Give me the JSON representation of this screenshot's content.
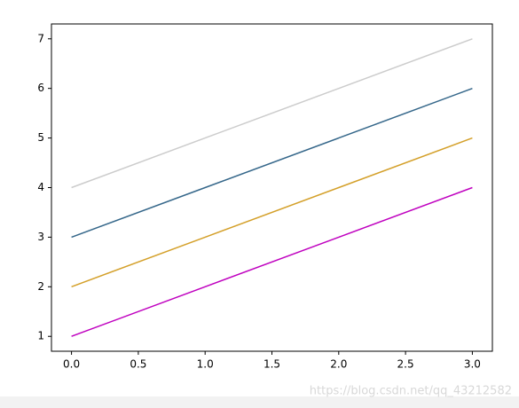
{
  "chart_data": {
    "type": "line",
    "x": [
      0,
      1,
      2,
      3
    ],
    "series": [
      {
        "color": "#bf00bf",
        "values": [
          1,
          2,
          3,
          4
        ]
      },
      {
        "color": "#d4a02a",
        "values": [
          2,
          3,
          4,
          5
        ]
      },
      {
        "color": "#35678a",
        "values": [
          3,
          4,
          5,
          6
        ]
      },
      {
        "color": "#cccccc",
        "values": [
          4,
          5,
          6,
          7
        ]
      }
    ],
    "xlim": [
      -0.15,
      3.15
    ],
    "xticks": [
      {
        "value": 0,
        "label": "0.0"
      },
      0.5,
      {
        "value": 1,
        "label": "1.0"
      },
      1.5,
      {
        "value": 2,
        "label": "2.0"
      },
      2.5,
      {
        "value": 3,
        "label": "3.0"
      }
    ],
    "ylim": [
      0.7,
      7.3
    ],
    "yticks": [
      1,
      2,
      3,
      4,
      5,
      6,
      7
    ],
    "grid": false
  },
  "watermark": "https://blog.csdn.net/qq_43212582"
}
